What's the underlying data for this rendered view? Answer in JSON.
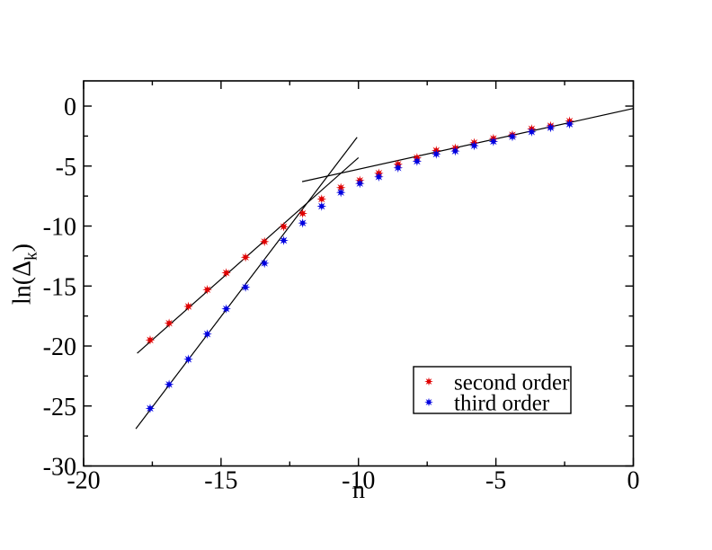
{
  "figure_title": "",
  "chart_data": {
    "type": "scatter",
    "title": "",
    "xlabel": "n",
    "ylabel": "ln(Δk)",
    "ylabel_pre": "ln(Δ",
    "ylabel_sub": "k",
    "ylabel_post": ")",
    "xlim": [
      -20,
      0
    ],
    "ylim": [
      -30,
      2.1
    ],
    "grid": false,
    "frame_color": "#000000",
    "x_ticks": {
      "major": [
        {
          "value": -20,
          "label": "-20"
        },
        {
          "value": -15,
          "label": "-15"
        },
        {
          "value": -10,
          "label": "-10"
        },
        {
          "value": -5,
          "label": "-5"
        },
        {
          "value": 0,
          "label": "0"
        }
      ],
      "minor": [
        -17.5,
        -12.5,
        -7.5,
        -2.5
      ]
    },
    "y_ticks": {
      "major": [
        {
          "value": 0,
          "label": "0"
        },
        {
          "value": -5,
          "label": "-5"
        },
        {
          "value": -10,
          "label": "-10"
        },
        {
          "value": -15,
          "label": "-15"
        },
        {
          "value": -20,
          "label": "-20"
        },
        {
          "value": -25,
          "label": "-25"
        },
        {
          "value": -30,
          "label": "-30"
        }
      ],
      "minor": [
        -2.5,
        -7.5,
        -12.5,
        -17.5,
        -22.5,
        -27.5
      ]
    },
    "x": [
      -17.58,
      -16.89,
      -16.19,
      -15.5,
      -14.81,
      -14.11,
      -13.42,
      -12.72,
      -12.03,
      -11.34,
      -10.64,
      -9.95,
      -9.26,
      -8.56,
      -7.87,
      -7.17,
      -6.48,
      -5.79,
      -5.09,
      -4.4,
      -3.7,
      -3.01,
      -2.32
    ],
    "series": [
      {
        "name": "second order",
        "color": "#e00000",
        "marker": "star",
        "y": [
          -19.5,
          -18.1,
          -16.7,
          -15.3,
          -13.9,
          -12.6,
          -11.3,
          -10.05,
          -8.95,
          -7.75,
          -6.8,
          -6.2,
          -5.6,
          -4.85,
          -4.3,
          -3.7,
          -3.5,
          -3.05,
          -2.7,
          -2.4,
          -1.9,
          -1.65,
          -1.25
        ]
      },
      {
        "name": "third order",
        "color": "#0000e0",
        "marker": "star",
        "y": [
          -25.2,
          -23.2,
          -21.1,
          -19.0,
          -16.9,
          -15.1,
          -13.1,
          -11.2,
          -9.75,
          -8.35,
          -7.2,
          -6.45,
          -5.9,
          -5.15,
          -4.6,
          -4.0,
          -3.75,
          -3.3,
          -2.95,
          -2.55,
          -2.15,
          -1.8,
          -1.5
        ]
      }
    ],
    "fit_lines": [
      {
        "name": "second-order-fit",
        "color": "#000000",
        "x1": -18.05,
        "y1": -20.6,
        "x2": -10.0,
        "y2": -4.3
      },
      {
        "name": "third-order-fit",
        "color": "#000000",
        "x1": -18.1,
        "y1": -26.9,
        "x2": -10.05,
        "y2": -2.6
      },
      {
        "name": "asymptotic-fit",
        "color": "#000000",
        "x1": -12.05,
        "y1": -6.3,
        "x2": 0.0,
        "y2": -0.2
      }
    ],
    "legend": {
      "position": "inside-lower-right",
      "items": [
        "second order",
        "third order"
      ]
    }
  }
}
